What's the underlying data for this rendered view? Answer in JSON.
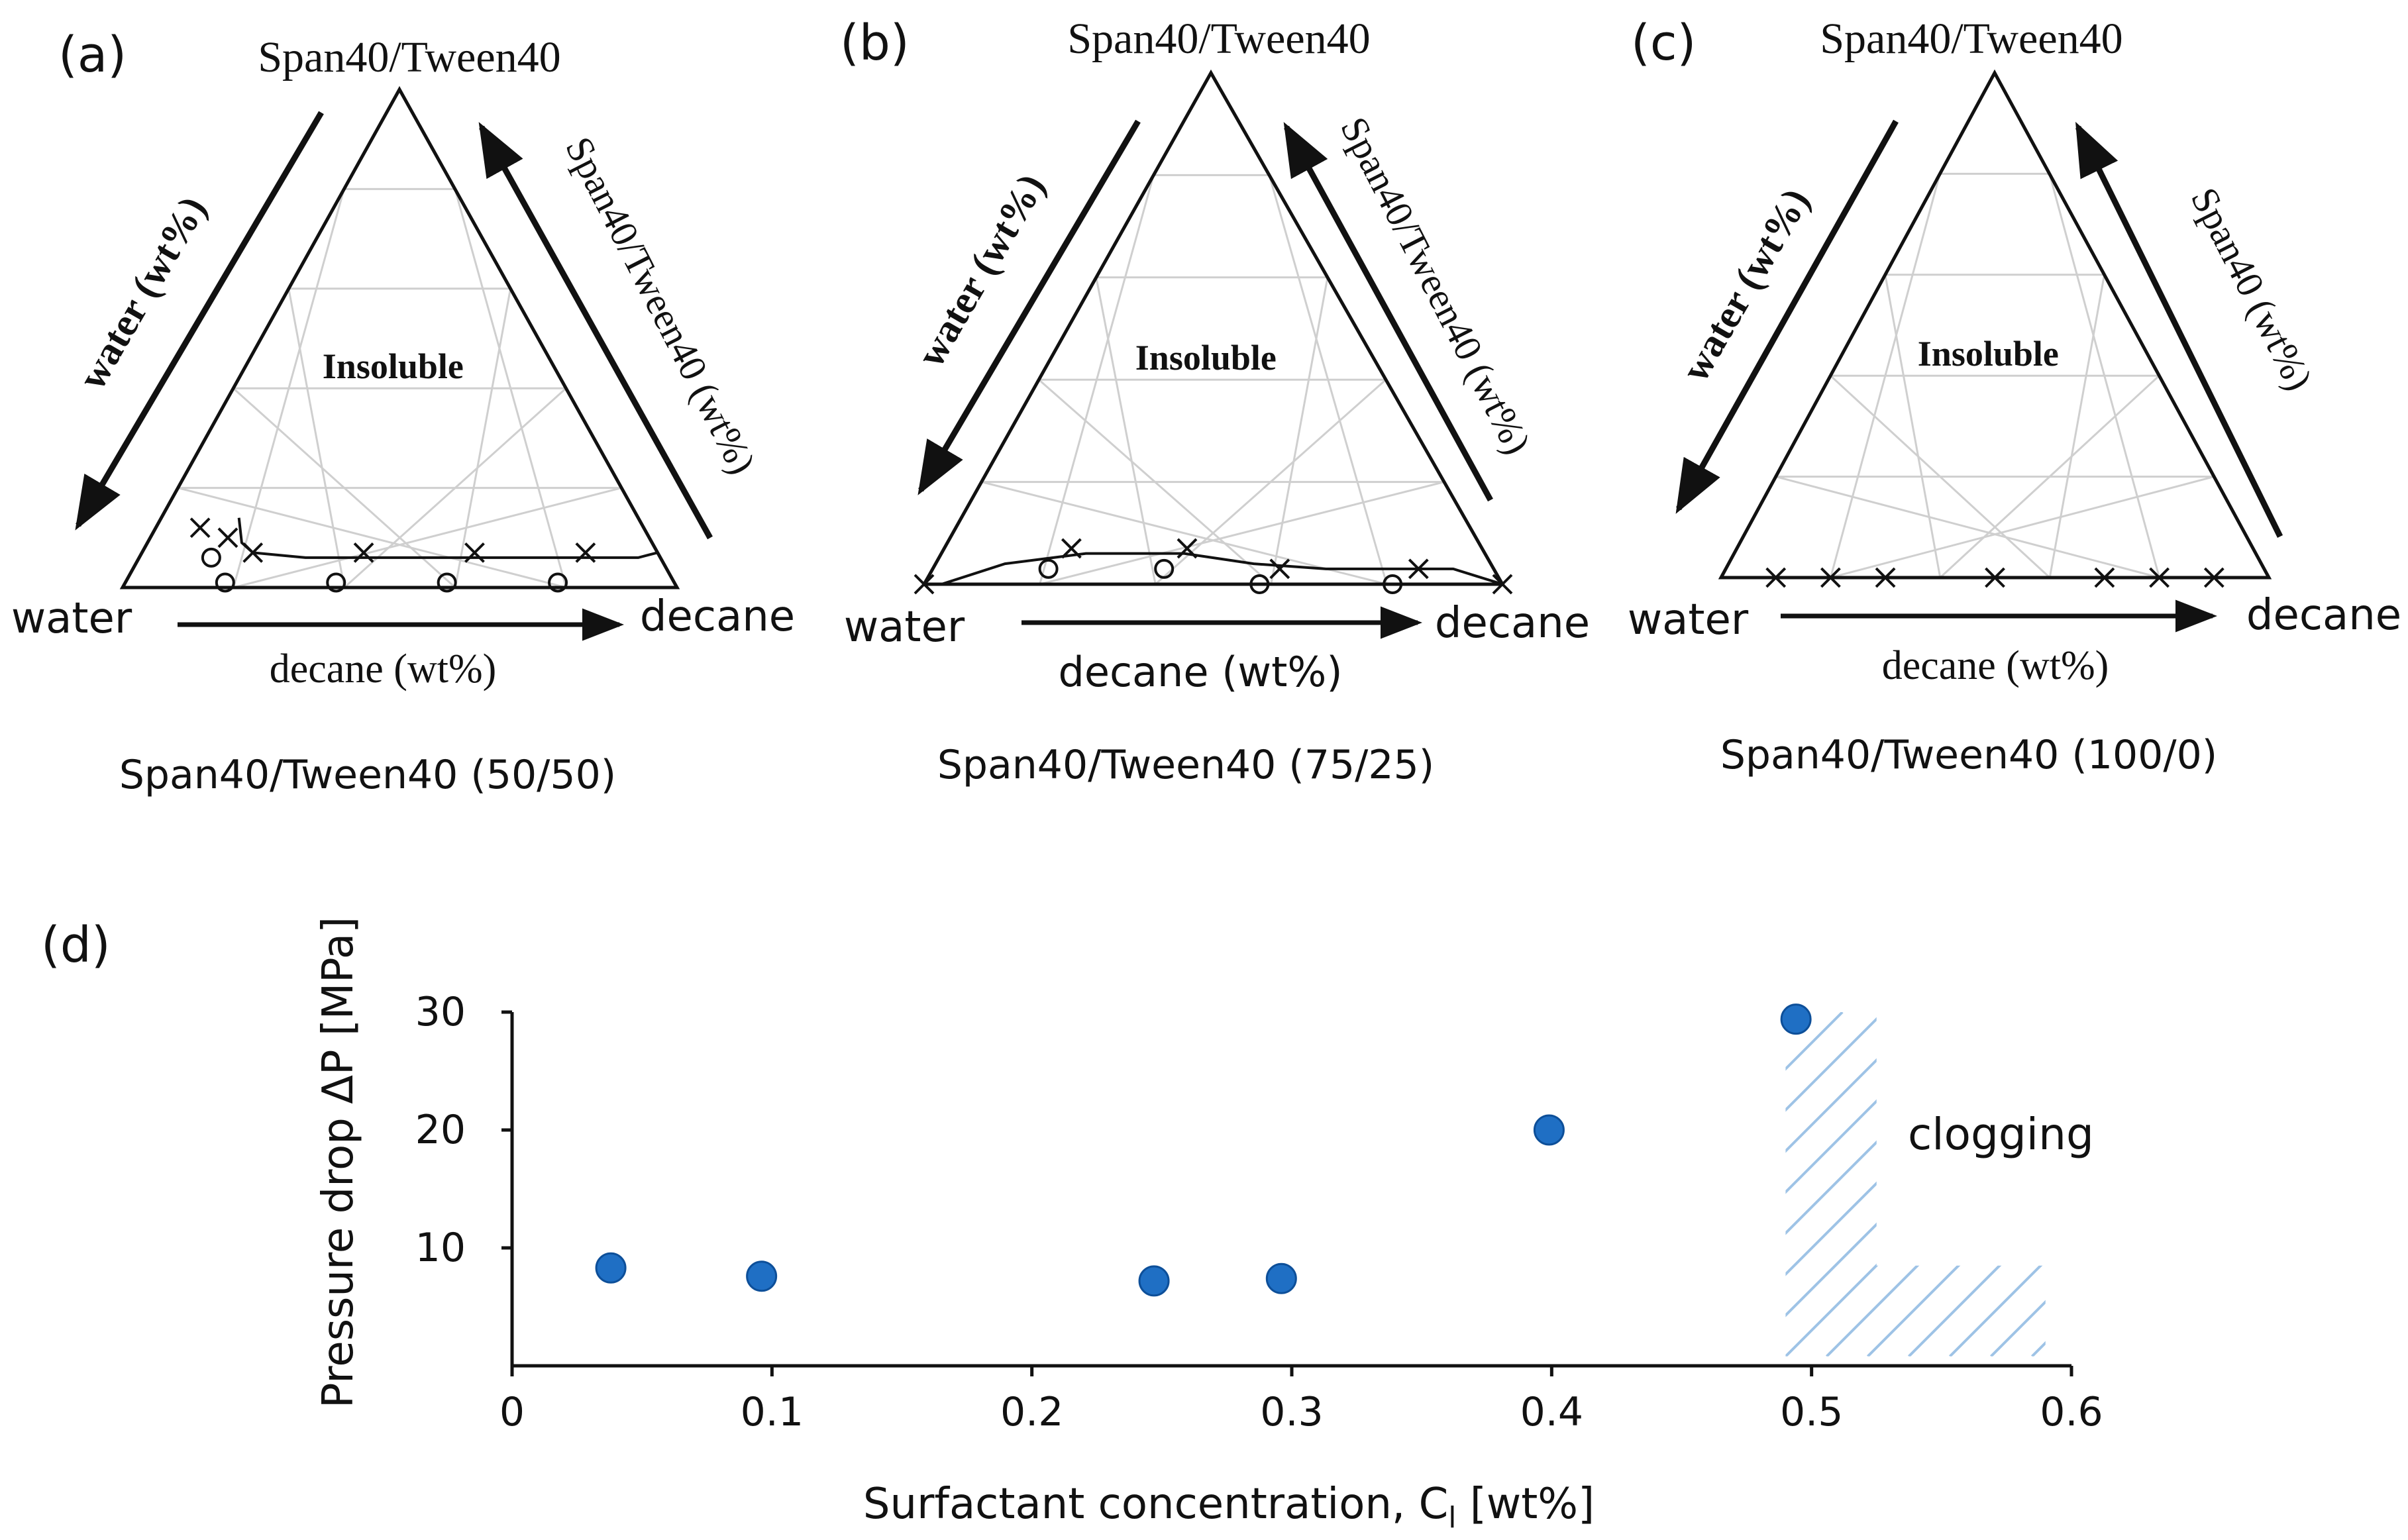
{
  "panels": [
    {
      "letter": "(a)",
      "top_label": "Span40/Tween40",
      "left_axis_label": "water (wt%)",
      "right_axis_label": "Span40/Tween40 (wt%)",
      "bottom_axis_label": "decane (wt%)",
      "left_corner": "water",
      "right_corner": "decane",
      "region_label": "Insoluble",
      "caption": "Span40/Tween40 (50/50)",
      "x_points": [
        [
          8,
          12
        ],
        [
          14,
          10
        ],
        [
          20,
          7
        ],
        [
          40,
          7
        ],
        [
          60,
          7
        ],
        [
          80,
          7
        ]
      ],
      "o_points": [
        [
          13,
          6
        ],
        [
          18,
          1
        ],
        [
          38,
          1
        ],
        [
          58,
          1
        ],
        [
          78,
          1
        ]
      ],
      "boundary_curve": [
        [
          14,
          14
        ],
        [
          17,
          9
        ],
        [
          20,
          7
        ],
        [
          30,
          6
        ],
        [
          50,
          6
        ],
        [
          75,
          6
        ],
        [
          90,
          6
        ],
        [
          93,
          7
        ]
      ]
    },
    {
      "letter": "(b)",
      "top_label": "Span40/Tween40",
      "left_axis_label": "water (wt%)",
      "right_axis_label": "Span40/Tween40 (wt%)",
      "bottom_axis_label": "decane (wt%)",
      "left_corner": "water",
      "right_corner": "decane",
      "region_label": "Insoluble",
      "caption": "Span40/Tween40 (75/25)",
      "x_points": [
        [
          0,
          0
        ],
        [
          22,
          7
        ],
        [
          42,
          7
        ],
        [
          60,
          3
        ],
        [
          84,
          3
        ],
        [
          100,
          0
        ]
      ],
      "o_points": [
        [
          20,
          3
        ],
        [
          40,
          3
        ],
        [
          58,
          0
        ],
        [
          81,
          0
        ]
      ],
      "boundary_curve": [
        [
          3,
          0
        ],
        [
          12,
          4
        ],
        [
          25,
          6
        ],
        [
          42,
          6
        ],
        [
          55,
          4
        ],
        [
          68,
          3
        ],
        [
          90,
          3
        ],
        [
          100,
          0
        ]
      ]
    },
    {
      "letter": "(c)",
      "top_label": "Span40/Tween40",
      "left_axis_label": "water (wt%)",
      "right_axis_label": "Span40 (wt%)",
      "bottom_axis_label": "decane (wt%)",
      "left_corner": "water",
      "right_corner": "decane",
      "region_label": "Insoluble",
      "caption": "Span40/Tween40 (100/0)",
      "x_points": [
        [
          10,
          0
        ],
        [
          20,
          0
        ],
        [
          30,
          0
        ],
        [
          50,
          0
        ],
        [
          70,
          0
        ],
        [
          80,
          0
        ],
        [
          90,
          0
        ]
      ],
      "o_points": [],
      "boundary_curve": [
        [
          0,
          0
        ],
        [
          100,
          0
        ]
      ]
    }
  ],
  "chart_d": {
    "letter": "(d)",
    "region_label": "clogging",
    "chart_data": {
      "type": "scatter",
      "title": "",
      "xlabel": "Surfactant concentration, C",
      "xlabel_subscript": "l",
      "xlabel_unit": "[wt%]",
      "ylabel": "Pressure drop ΔP [MPa]",
      "xlim": [
        0,
        0.6
      ],
      "ylim": [
        0,
        30
      ],
      "x_ticks": [
        0,
        0.1,
        0.2,
        0.3,
        0.4,
        0.5,
        0.6
      ],
      "x_tick_labels": [
        "0",
        "0.1",
        "0.2",
        "0.3",
        "0.4",
        "0.5",
        "0.6"
      ],
      "y_ticks": [
        10,
        20,
        30
      ],
      "y_tick_labels": [
        "10",
        "20",
        "30"
      ],
      "points": [
        {
          "x": 0.038,
          "y": 8.3
        },
        {
          "x": 0.096,
          "y": 7.6
        },
        {
          "x": 0.247,
          "y": 7.2
        },
        {
          "x": 0.296,
          "y": 7.4
        },
        {
          "x": 0.399,
          "y": 20.0
        },
        {
          "x": 0.494,
          "y": 29.4
        }
      ],
      "marker_color": "#1f6fc4",
      "clogging_region": {
        "x_start": 0.49,
        "x_end": 0.59,
        "y_split": 8.5,
        "x_split": 0.525,
        "y_top": 30
      }
    }
  },
  "colors": {
    "ink": "#111111",
    "grid": "#cfcfcf",
    "hatch": "#9ec3e6",
    "marker": "#1f6fc4"
  }
}
